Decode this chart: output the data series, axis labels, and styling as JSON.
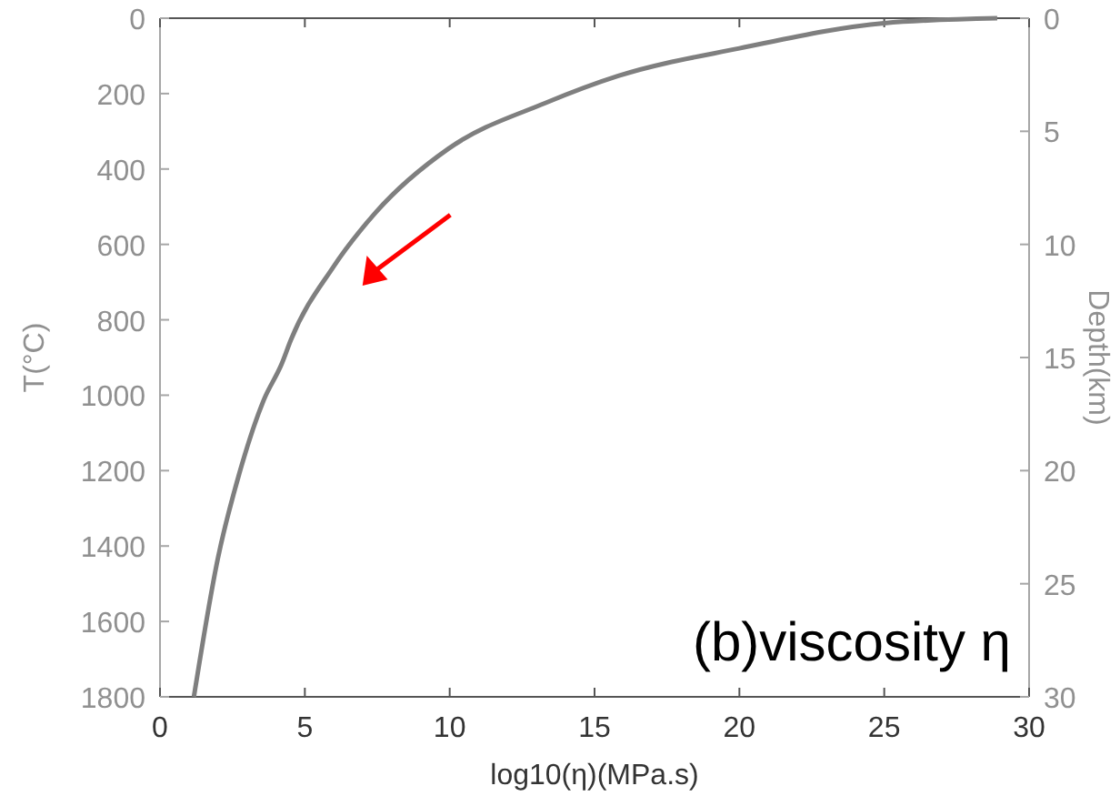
{
  "chart_data": {
    "type": "line",
    "xlabel": "log10(η)(MPa.s)",
    "ylabel": "T(°C)",
    "y2label": "Depth(km)",
    "annotations": [
      "(b)viscosity η"
    ],
    "x": [
      1.17,
      2.0,
      2.74,
      3.58,
      4.2,
      4.52,
      5.98,
      7.45,
      9.96,
      13.3,
      15.82,
      20.0,
      25.0,
      28.9
    ],
    "series": [
      {
        "color": "#7f7f7f",
        "values": [
          1800,
          1432,
          1207,
          1013,
          917,
          853,
          660,
          515,
          346,
          225,
          153,
          80,
          13,
          0
        ]
      }
    ],
    "xlim": [
      0,
      30
    ],
    "xticks": [
      0,
      5,
      10,
      15,
      20,
      25,
      30
    ],
    "ylim": [
      1800,
      0
    ],
    "yticks": [
      0,
      200,
      400,
      600,
      800,
      1000,
      1200,
      1400,
      1600,
      1800
    ],
    "y2lim": [
      30,
      0
    ],
    "y2ticks": [
      0,
      5,
      10,
      15,
      20,
      25,
      30
    ],
    "grid": false,
    "marker": "none",
    "line_style": "solid"
  }
}
